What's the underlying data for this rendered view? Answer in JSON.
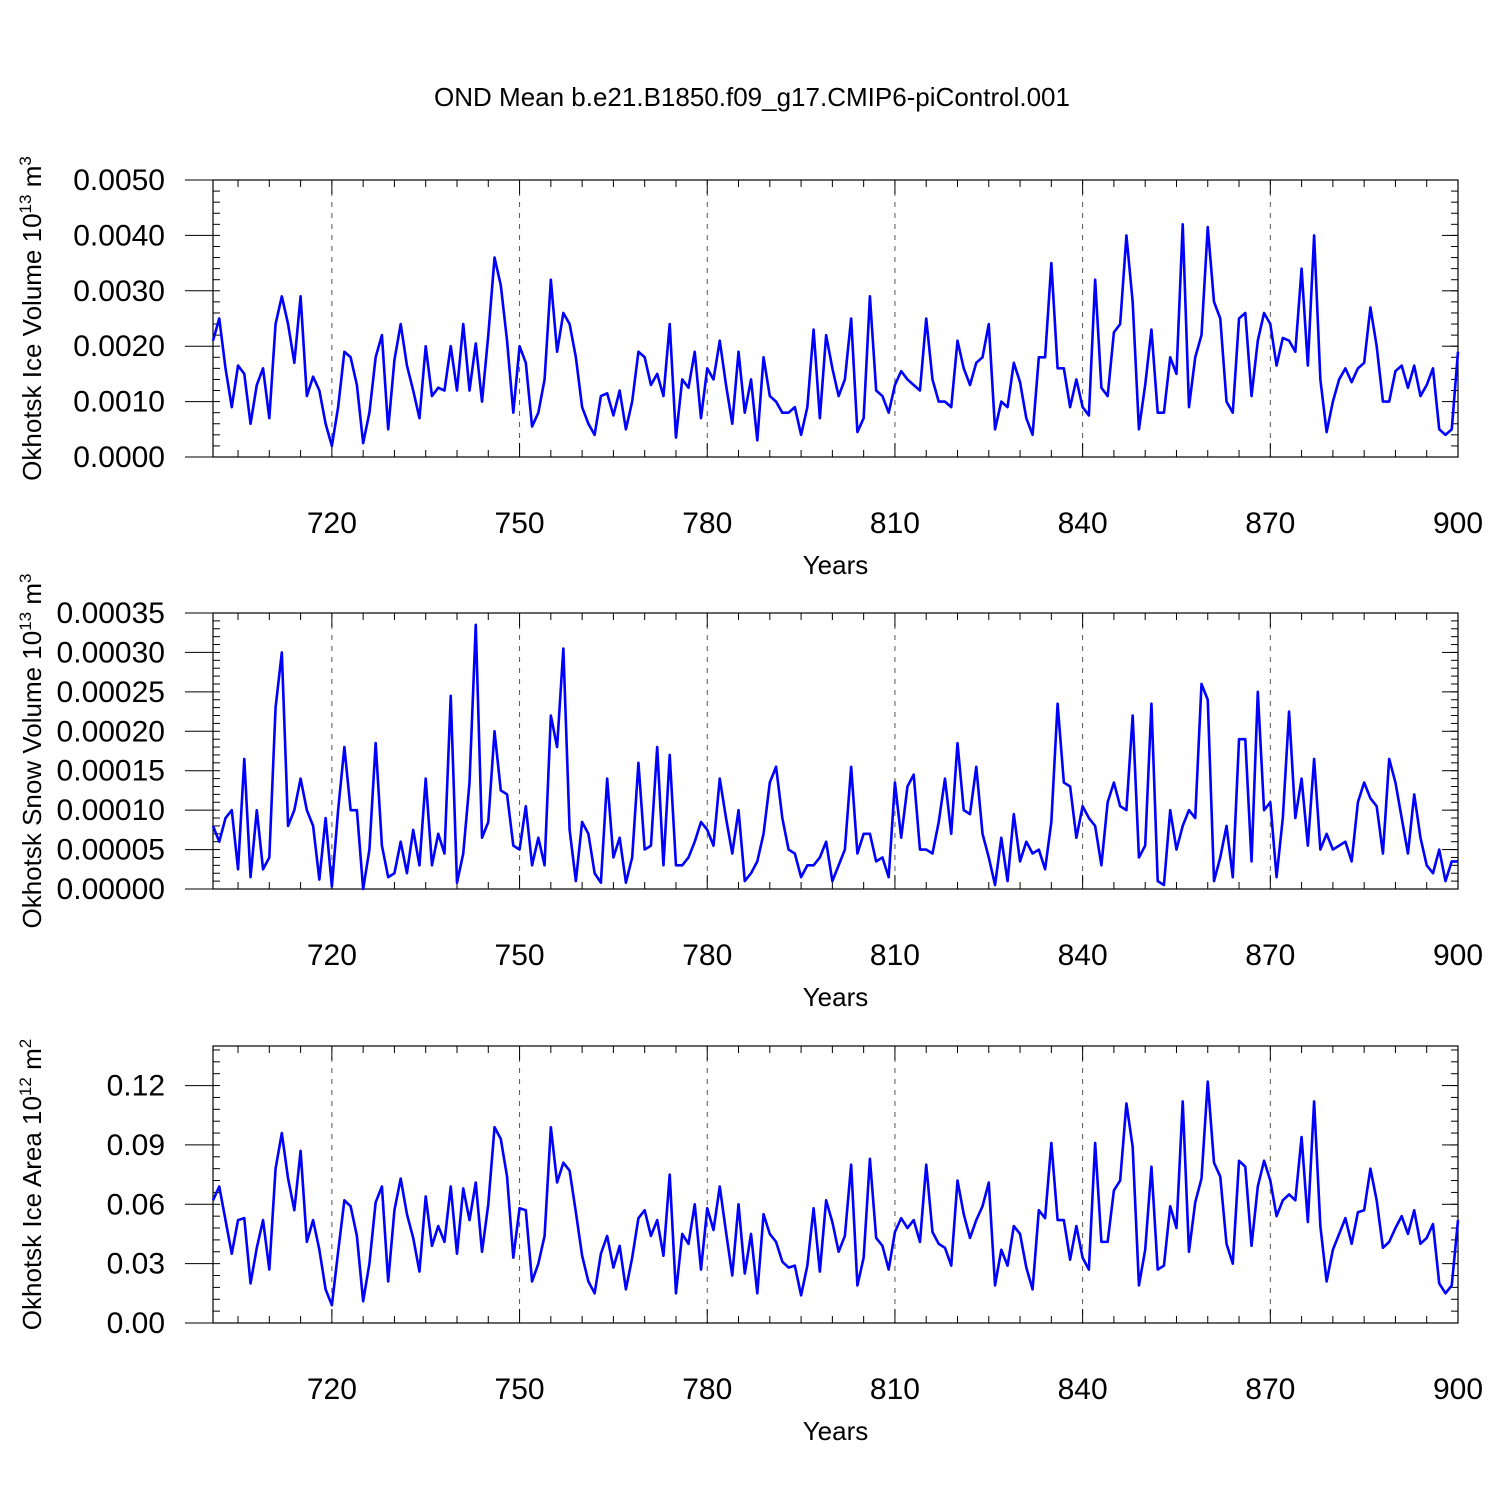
{
  "figure_title": "OND Mean b.e21.B1850.f09_g17.CMIP6-piControl.001",
  "colors": {
    "line": "#0000ff",
    "grid": "#555555",
    "axes": "#000000"
  },
  "chart_data": [
    {
      "type": "line",
      "title": "",
      "xlabel": "Years",
      "ylabel": "Okhotsk Ice Volume 10",
      "ylabel_sup": "13",
      "ylabel_unit": " m",
      "ylabel_unit_sup": "3",
      "x_start": 701,
      "xlim": [
        701,
        900
      ],
      "ylim": [
        0,
        0.005
      ],
      "xticks": [
        720,
        750,
        780,
        810,
        840,
        870,
        900
      ],
      "xtick_labels": [
        "720",
        "750",
        "780",
        "810",
        "840",
        "870",
        "900"
      ],
      "yticks": [
        0,
        0.001,
        0.002,
        0.003,
        0.004,
        0.005
      ],
      "ytick_labels": [
        "0.0000",
        "0.0010",
        "0.0020",
        "0.0030",
        "0.0040",
        "0.0050"
      ],
      "grid": "vertical dashed at major x ticks",
      "series": [
        {
          "name": "Okhotsk Ice Volume",
          "values": [
            0.0021,
            0.0025,
            0.0016,
            0.0009,
            0.00165,
            0.0015,
            0.0006,
            0.0013,
            0.0016,
            0.0007,
            0.0024,
            0.0029,
            0.0024,
            0.0017,
            0.0029,
            0.0011,
            0.00145,
            0.0012,
            0.0006,
            0.0002,
            0.0009,
            0.0019,
            0.0018,
            0.0013,
            0.00025,
            0.0008,
            0.0018,
            0.0022,
            0.0005,
            0.00175,
            0.0024,
            0.00165,
            0.0012,
            0.0007,
            0.002,
            0.0011,
            0.00125,
            0.0012,
            0.002,
            0.0012,
            0.0024,
            0.0012,
            0.00205,
            0.001,
            0.0022,
            0.0036,
            0.0031,
            0.0021,
            0.0008,
            0.002,
            0.0017,
            0.00055,
            0.0008,
            0.0014,
            0.0032,
            0.0019,
            0.0026,
            0.0024,
            0.0018,
            0.0009,
            0.0006,
            0.0004,
            0.0011,
            0.00115,
            0.00075,
            0.0012,
            0.0005,
            0.001,
            0.0019,
            0.0018,
            0.0013,
            0.0015,
            0.0011,
            0.0024,
            0.00035,
            0.0014,
            0.00125,
            0.0019,
            0.0007,
            0.0016,
            0.0014,
            0.0021,
            0.0013,
            0.0006,
            0.0019,
            0.0008,
            0.0014,
            0.0003,
            0.0018,
            0.0011,
            0.001,
            0.0008,
            0.0008,
            0.0009,
            0.0004,
            0.0009,
            0.0023,
            0.0007,
            0.0022,
            0.0016,
            0.0011,
            0.0014,
            0.0025,
            0.00045,
            0.0007,
            0.0029,
            0.0012,
            0.0011,
            0.0008,
            0.0013,
            0.00155,
            0.0014,
            0.0013,
            0.0012,
            0.0025,
            0.0014,
            0.001,
            0.001,
            0.0009,
            0.0021,
            0.0016,
            0.0013,
            0.0017,
            0.0018,
            0.0024,
            0.0005,
            0.001,
            0.0009,
            0.0017,
            0.00135,
            0.0007,
            0.0004,
            0.0018,
            0.0018,
            0.0035,
            0.0016,
            0.0016,
            0.0009,
            0.0014,
            0.0009,
            0.00075,
            0.0032,
            0.00125,
            0.0011,
            0.00225,
            0.0024,
            0.004,
            0.0028,
            0.0005,
            0.0013,
            0.0023,
            0.0008,
            0.0008,
            0.0018,
            0.0015,
            0.0042,
            0.0009,
            0.0018,
            0.0022,
            0.00415,
            0.0028,
            0.0025,
            0.001,
            0.0008,
            0.0025,
            0.0026,
            0.0011,
            0.0021,
            0.0026,
            0.0024,
            0.00165,
            0.00215,
            0.0021,
            0.0019,
            0.0034,
            0.00165,
            0.004,
            0.0014,
            0.00045,
            0.001,
            0.0014,
            0.0016,
            0.00135,
            0.0016,
            0.0017,
            0.0027,
            0.002,
            0.001,
            0.001,
            0.00155,
            0.00165,
            0.00125,
            0.00165,
            0.0011,
            0.0013,
            0.0016,
            0.0005,
            0.0004,
            0.0005,
            0.0019
          ]
        }
      ]
    },
    {
      "type": "line",
      "title": "",
      "xlabel": "Years",
      "ylabel": "Okhotsk Snow Volume 10",
      "ylabel_sup": "13",
      "ylabel_unit": " m",
      "ylabel_unit_sup": "3",
      "x_start": 701,
      "xlim": [
        701,
        900
      ],
      "ylim": [
        0,
        0.00035
      ],
      "xticks": [
        720,
        750,
        780,
        810,
        840,
        870,
        900
      ],
      "xtick_labels": [
        "720",
        "750",
        "780",
        "810",
        "840",
        "870",
        "900"
      ],
      "yticks": [
        0,
        5e-05,
        0.0001,
        0.00015,
        0.0002,
        0.00025,
        0.0003,
        0.00035
      ],
      "ytick_labels": [
        "0.00000",
        "0.00005",
        "0.00010",
        "0.00015",
        "0.00020",
        "0.00025",
        "0.00030",
        "0.00035"
      ],
      "grid": "vertical dashed at major x ticks",
      "series": [
        {
          "name": "Okhotsk Snow Volume",
          "values": [
            8e-05,
            6e-05,
            9e-05,
            0.0001,
            2.5e-05,
            0.000165,
            1.5e-05,
            0.0001,
            2.5e-05,
            4e-05,
            0.00023,
            0.0003,
            8e-05,
            0.0001,
            0.00014,
            0.0001,
            8e-05,
            1.2e-05,
            9e-05,
            3e-06,
            0.0001,
            0.00018,
            0.0001,
            0.0001,
            0.0,
            5e-05,
            0.000185,
            5.5e-05,
            1.5e-05,
            2e-05,
            6e-05,
            2e-05,
            7.5e-05,
            3e-05,
            0.00014,
            3e-05,
            7e-05,
            4.5e-05,
            0.000245,
            8e-06,
            4.5e-05,
            0.000135,
            0.000335,
            6.5e-05,
            8.5e-05,
            0.0002,
            0.000125,
            0.00012,
            5.5e-05,
            5e-05,
            0.000105,
            3e-05,
            6.5e-05,
            3e-05,
            0.00022,
            0.00018,
            0.000305,
            7.5e-05,
            1e-05,
            8.5e-05,
            7e-05,
            2e-05,
            8e-06,
            0.00014,
            4e-05,
            6.5e-05,
            8e-06,
            4e-05,
            0.00016,
            5e-05,
            5.5e-05,
            0.00018,
            3e-05,
            0.00017,
            3e-05,
            3e-05,
            4e-05,
            6e-05,
            8.5e-05,
            7.5e-05,
            5.5e-05,
            0.00014,
            9e-05,
            4.5e-05,
            0.0001,
            1e-05,
            2e-05,
            3.5e-05,
            7e-05,
            0.000135,
            0.000155,
            9e-05,
            5e-05,
            4.5e-05,
            1.5e-05,
            3e-05,
            3e-05,
            4e-05,
            6e-05,
            1e-05,
            3e-05,
            5e-05,
            0.000155,
            4.5e-05,
            7e-05,
            7e-05,
            3.5e-05,
            4e-05,
            1.5e-05,
            0.000135,
            6.5e-05,
            0.00013,
            0.000145,
            5e-05,
            5e-05,
            4.5e-05,
            8.5e-05,
            0.00014,
            7e-05,
            0.000185,
            0.0001,
            9.5e-05,
            0.000155,
            7e-05,
            4e-05,
            5e-06,
            6.5e-05,
            1e-05,
            9.5e-05,
            3.5e-05,
            6e-05,
            4.5e-05,
            5e-05,
            2.5e-05,
            8.5e-05,
            0.000235,
            0.000135,
            0.00013,
            6.5e-05,
            0.000105,
            9e-05,
            8e-05,
            3e-05,
            0.00011,
            0.000135,
            0.000105,
            0.0001,
            0.00022,
            4e-05,
            5.5e-05,
            0.000235,
            1e-05,
            5e-06,
            0.0001,
            5e-05,
            8e-05,
            0.0001,
            9e-05,
            0.00026,
            0.00024,
            1e-05,
            4e-05,
            8e-05,
            1.5e-05,
            0.00019,
            0.00019,
            3.5e-05,
            0.00025,
            0.0001,
            0.00011,
            1.5e-05,
            9e-05,
            0.000225,
            9e-05,
            0.00014,
            5.5e-05,
            0.000165,
            5e-05,
            7e-05,
            5e-05,
            5.5e-05,
            6e-05,
            3.5e-05,
            0.00011,
            0.000135,
            0.000115,
            0.000105,
            4.5e-05,
            0.000165,
            0.000135,
            9e-05,
            4.5e-05,
            0.00012,
            6.5e-05,
            3e-05,
            2e-05,
            5e-05,
            1e-05,
            3.5e-05,
            3.5e-05
          ]
        }
      ]
    },
    {
      "type": "line",
      "title": "",
      "xlabel": "Years",
      "ylabel": "Okhotsk Ice Area 10",
      "ylabel_sup": "12",
      "ylabel_unit": " m",
      "ylabel_unit_sup": "2",
      "x_start": 701,
      "xlim": [
        701,
        900
      ],
      "ylim": [
        0,
        0.14
      ],
      "xticks": [
        720,
        750,
        780,
        810,
        840,
        870,
        900
      ],
      "xtick_labels": [
        "720",
        "750",
        "780",
        "810",
        "840",
        "870",
        "900"
      ],
      "yticks": [
        0,
        0.03,
        0.06,
        0.09,
        0.12
      ],
      "ytick_labels": [
        "0.00",
        "0.03",
        "0.06",
        "0.09",
        "0.12"
      ],
      "grid": "vertical dashed at major x ticks",
      "series": [
        {
          "name": "Okhotsk Ice Area",
          "values": [
            0.062,
            0.069,
            0.052,
            0.035,
            0.052,
            0.053,
            0.02,
            0.038,
            0.052,
            0.027,
            0.078,
            0.096,
            0.073,
            0.057,
            0.087,
            0.041,
            0.052,
            0.037,
            0.017,
            0.009,
            0.036,
            0.062,
            0.059,
            0.044,
            0.011,
            0.03,
            0.061,
            0.069,
            0.021,
            0.057,
            0.073,
            0.055,
            0.043,
            0.026,
            0.064,
            0.039,
            0.049,
            0.041,
            0.069,
            0.035,
            0.068,
            0.052,
            0.071,
            0.036,
            0.06,
            0.099,
            0.093,
            0.074,
            0.033,
            0.058,
            0.057,
            0.021,
            0.03,
            0.044,
            0.099,
            0.071,
            0.081,
            0.077,
            0.056,
            0.034,
            0.021,
            0.015,
            0.035,
            0.044,
            0.028,
            0.039,
            0.017,
            0.033,
            0.053,
            0.057,
            0.044,
            0.052,
            0.034,
            0.075,
            0.015,
            0.045,
            0.04,
            0.06,
            0.027,
            0.058,
            0.047,
            0.069,
            0.046,
            0.024,
            0.06,
            0.025,
            0.045,
            0.015,
            0.055,
            0.045,
            0.041,
            0.031,
            0.028,
            0.029,
            0.014,
            0.029,
            0.058,
            0.026,
            0.062,
            0.051,
            0.036,
            0.044,
            0.08,
            0.019,
            0.033,
            0.083,
            0.043,
            0.039,
            0.027,
            0.046,
            0.053,
            0.048,
            0.052,
            0.041,
            0.08,
            0.046,
            0.04,
            0.038,
            0.029,
            0.072,
            0.055,
            0.043,
            0.052,
            0.059,
            0.071,
            0.019,
            0.037,
            0.029,
            0.049,
            0.045,
            0.028,
            0.017,
            0.057,
            0.053,
            0.091,
            0.052,
            0.052,
            0.032,
            0.049,
            0.033,
            0.027,
            0.091,
            0.041,
            0.041,
            0.067,
            0.072,
            0.111,
            0.089,
            0.019,
            0.037,
            0.079,
            0.027,
            0.029,
            0.059,
            0.048,
            0.112,
            0.036,
            0.061,
            0.073,
            0.122,
            0.081,
            0.074,
            0.04,
            0.03,
            0.082,
            0.079,
            0.039,
            0.069,
            0.082,
            0.072,
            0.054,
            0.062,
            0.065,
            0.062,
            0.094,
            0.051,
            0.112,
            0.049,
            0.021,
            0.037,
            0.045,
            0.053,
            0.04,
            0.056,
            0.057,
            0.078,
            0.062,
            0.038,
            0.041,
            0.048,
            0.054,
            0.045,
            0.057,
            0.04,
            0.043,
            0.05,
            0.02,
            0.015,
            0.019,
            0.052
          ]
        }
      ]
    }
  ]
}
